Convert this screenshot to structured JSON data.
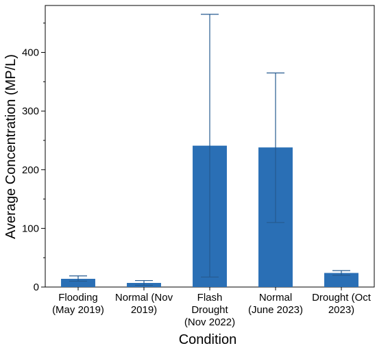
{
  "chart_data": {
    "type": "bar",
    "title": "",
    "xlabel": "Condition",
    "ylabel": "Average Concentration (MP/L)",
    "categories": [
      [
        "Flooding",
        "(May 2019)"
      ],
      [
        "Normal (Nov",
        "2019)"
      ],
      [
        "Flash",
        "Drought",
        "(Nov 2022)"
      ],
      [
        "Normal",
        "(June 2023)"
      ],
      [
        "Drought (Oct",
        "2023)"
      ]
    ],
    "values": [
      14,
      7,
      241,
      238,
      24
    ],
    "error_low": [
      10,
      3,
      17,
      110,
      20
    ],
    "error_high": [
      19,
      11,
      465,
      365,
      28
    ],
    "ylim": [
      0,
      480
    ],
    "yticks": [
      0,
      100,
      200,
      300,
      400
    ],
    "yticks_minor": [
      50,
      150,
      250,
      350,
      450
    ],
    "bar_color": "#2a6fb5",
    "error_color": "#255a8f",
    "grid": false,
    "legend": "none"
  }
}
